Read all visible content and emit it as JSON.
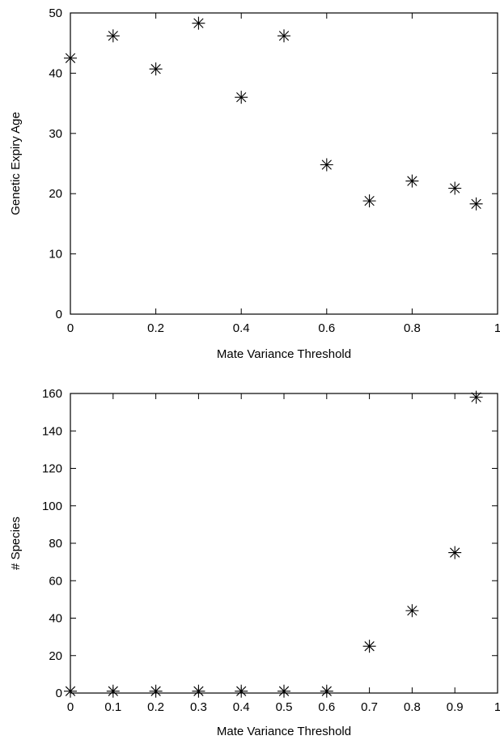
{
  "chart_data": [
    {
      "type": "scatter",
      "title": "",
      "xlabel": "Mate Variance Threshold",
      "ylabel": "Genetic Expiry Age",
      "xlim": [
        0,
        1
      ],
      "ylim": [
        0,
        50
      ],
      "xticks": [
        0,
        0.2,
        0.4,
        0.6,
        0.8,
        1
      ],
      "xtick_labels": [
        "0",
        "0.2",
        "0.4",
        "0.6",
        "0.8",
        "1"
      ],
      "yticks": [
        0,
        10,
        20,
        30,
        40,
        50
      ],
      "ytick_labels": [
        "0",
        "10",
        "20",
        "30",
        "40",
        "50"
      ],
      "grid": false,
      "marker": "asterisk",
      "marker_color": "#000000",
      "x": [
        0,
        0.1,
        0.2,
        0.3,
        0.4,
        0.5,
        0.6,
        0.7,
        0.8,
        0.9,
        0.95
      ],
      "y": [
        42.5,
        46.2,
        40.7,
        48.3,
        36.0,
        46.2,
        24.8,
        18.8,
        22.1,
        20.9,
        18.3
      ]
    },
    {
      "type": "scatter",
      "title": "",
      "xlabel": "Mate Variance Threshold",
      "ylabel": "# Species",
      "xlim": [
        0,
        1
      ],
      "ylim": [
        0,
        160
      ],
      "xticks": [
        0,
        0.1,
        0.2,
        0.3,
        0.4,
        0.5,
        0.6,
        0.7,
        0.8,
        0.9,
        1
      ],
      "xtick_labels": [
        "0",
        "0.1",
        "0.2",
        "0.3",
        "0.4",
        "0.5",
        "0.6",
        "0.7",
        "0.8",
        "0.9",
        "1"
      ],
      "yticks": [
        0,
        20,
        40,
        60,
        80,
        100,
        120,
        140,
        160
      ],
      "ytick_labels": [
        "0",
        "20",
        "40",
        "60",
        "80",
        "100",
        "120",
        "140",
        "160"
      ],
      "grid": false,
      "marker": "asterisk",
      "marker_color": "#000000",
      "x": [
        0,
        0.1,
        0.2,
        0.3,
        0.4,
        0.5,
        0.6,
        0.7,
        0.8,
        0.9,
        0.95
      ],
      "y": [
        1,
        1,
        1,
        1,
        1,
        1,
        1,
        25,
        44,
        75,
        158
      ]
    }
  ]
}
